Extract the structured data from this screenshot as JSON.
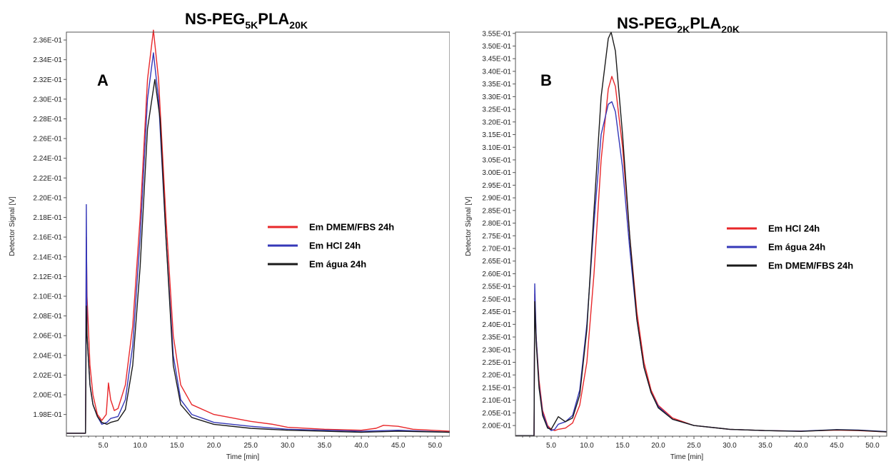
{
  "chart_data": [
    {
      "type": "line",
      "title": "NS-PEG5KPLA20K",
      "title_main": "NS-PEG",
      "title_sub1": "5K",
      "title_mid": "PLA",
      "title_sub2": "20K",
      "panel_letter": "A",
      "xlabel": "Time [min]",
      "ylabel": "Detector Signal [V]",
      "xlim": [
        0,
        52
      ],
      "ylim": [
        0.1958,
        0.2368
      ],
      "x_ticks": [
        5,
        10,
        15,
        20,
        25,
        30,
        35,
        40,
        45,
        50
      ],
      "x_tick_labels": [
        "5.0",
        "10.0",
        "15.0",
        "20.0",
        "25.0",
        "30.0",
        "35.0",
        "40.0",
        "45.0",
        "50.0"
      ],
      "y_ticks": [
        0.198,
        0.2,
        0.202,
        0.204,
        0.206,
        0.208,
        0.21,
        0.212,
        0.214,
        0.216,
        0.218,
        0.22,
        0.222,
        0.224,
        0.226,
        0.228,
        0.23,
        0.232,
        0.234,
        0.236
      ],
      "y_tick_labels": [
        "1.98E-01",
        "2.00E-01",
        "2.02E-01",
        "2.04E-01",
        "2.06E-01",
        "2.08E-01",
        "2.10E-01",
        "2.12E-01",
        "2.14E-01",
        "2.16E-01",
        "2.18E-01",
        "2.20E-01",
        "2.22E-01",
        "2.24E-01",
        "2.26E-01",
        "2.28E-01",
        "2.30E-01",
        "2.32E-01",
        "2.34E-01",
        "2.36E-01"
      ],
      "grid": false,
      "legend_position": "right",
      "series": [
        {
          "name": "Em DMEM/FBS 24h",
          "color": "#e8272a",
          "points": [
            [
              0,
              0.1961
            ],
            [
              2.6,
              0.1961
            ],
            [
              2.7,
              0.216
            ],
            [
              2.8,
              0.21
            ],
            [
              3.2,
              0.203
            ],
            [
              3.6,
              0.2
            ],
            [
              4.2,
              0.198
            ],
            [
              4.8,
              0.1974
            ],
            [
              5.4,
              0.198
            ],
            [
              5.7,
              0.2012
            ],
            [
              6.0,
              0.1995
            ],
            [
              6.5,
              0.1984
            ],
            [
              7.0,
              0.1986
            ],
            [
              8.0,
              0.201
            ],
            [
              9.0,
              0.207
            ],
            [
              10.0,
              0.218
            ],
            [
              11.0,
              0.232
            ],
            [
              11.8,
              0.237
            ],
            [
              12.5,
              0.232
            ],
            [
              13.5,
              0.218
            ],
            [
              14.5,
              0.206
            ],
            [
              15.5,
              0.201
            ],
            [
              17.0,
              0.199
            ],
            [
              20.0,
              0.198
            ],
            [
              25.0,
              0.1973
            ],
            [
              28.0,
              0.197
            ],
            [
              30.0,
              0.1967
            ],
            [
              35.0,
              0.1965
            ],
            [
              40.0,
              0.1964
            ],
            [
              42.0,
              0.1966
            ],
            [
              43.0,
              0.1969
            ],
            [
              45.0,
              0.1968
            ],
            [
              47.0,
              0.1965
            ],
            [
              52.0,
              0.1963
            ]
          ]
        },
        {
          "name": "Em HCl 24h",
          "color": "#3538b8",
          "points": [
            [
              0,
              0.1961
            ],
            [
              2.6,
              0.1961
            ],
            [
              2.7,
              0.2193
            ],
            [
              2.8,
              0.206
            ],
            [
              3.2,
              0.201
            ],
            [
              3.6,
              0.199
            ],
            [
              4.2,
              0.1978
            ],
            [
              4.8,
              0.197
            ],
            [
              5.5,
              0.1972
            ],
            [
              6.0,
              0.1976
            ],
            [
              7.0,
              0.1978
            ],
            [
              8.0,
              0.1995
            ],
            [
              9.0,
              0.205
            ],
            [
              10.0,
              0.216
            ],
            [
              11.0,
              0.23
            ],
            [
              11.8,
              0.2347
            ],
            [
              12.5,
              0.23
            ],
            [
              13.5,
              0.216
            ],
            [
              14.5,
              0.204
            ],
            [
              15.5,
              0.1995
            ],
            [
              17.0,
              0.198
            ],
            [
              20.0,
              0.1972
            ],
            [
              25.0,
              0.1968
            ],
            [
              30.0,
              0.1965
            ],
            [
              35.0,
              0.1964
            ],
            [
              40.0,
              0.1963
            ],
            [
              45.0,
              0.1964
            ],
            [
              52.0,
              0.1962
            ]
          ]
        },
        {
          "name": "Em água 24h",
          "color": "#1a1a1a",
          "points": [
            [
              0,
              0.1961
            ],
            [
              2.6,
              0.1961
            ],
            [
              2.7,
              0.209
            ],
            [
              2.8,
              0.206
            ],
            [
              3.2,
              0.201
            ],
            [
              3.6,
              0.199
            ],
            [
              4.2,
              0.1978
            ],
            [
              4.8,
              0.1972
            ],
            [
              5.5,
              0.197
            ],
            [
              6.0,
              0.1972
            ],
            [
              7.0,
              0.1974
            ],
            [
              8.0,
              0.1985
            ],
            [
              9.0,
              0.203
            ],
            [
              10.0,
              0.213
            ],
            [
              11.0,
              0.227
            ],
            [
              12.0,
              0.232
            ],
            [
              12.7,
              0.228
            ],
            [
              13.5,
              0.216
            ],
            [
              14.5,
              0.203
            ],
            [
              15.5,
              0.199
            ],
            [
              17.0,
              0.1977
            ],
            [
              20.0,
              0.197
            ],
            [
              25.0,
              0.1966
            ],
            [
              30.0,
              0.1964
            ],
            [
              35.0,
              0.1963
            ],
            [
              40.0,
              0.1962
            ],
            [
              45.0,
              0.1963
            ],
            [
              52.0,
              0.1962
            ]
          ]
        }
      ]
    },
    {
      "type": "line",
      "title": "NS-PEG2KPLA20K",
      "title_main": "NS-PEG",
      "title_sub1": "2K",
      "title_mid": "PLA",
      "title_sub2": "20K",
      "panel_letter": "B",
      "xlabel": "Time [min]",
      "ylabel": "Detector Signal [V]",
      "xlim": [
        0,
        52
      ],
      "ylim": [
        0.1958,
        0.3555
      ],
      "x_ticks": [
        5,
        10,
        15,
        20,
        25,
        30,
        35,
        40,
        45,
        50
      ],
      "x_tick_labels": [
        "5.0",
        "10.0",
        "15.0",
        "20.0",
        "25.0",
        "30.0",
        "35.0",
        "40.0",
        "45.0",
        "50.0"
      ],
      "y_ticks": [
        0.2,
        0.205,
        0.21,
        0.215,
        0.22,
        0.225,
        0.23,
        0.235,
        0.24,
        0.245,
        0.25,
        0.255,
        0.26,
        0.265,
        0.27,
        0.275,
        0.28,
        0.285,
        0.29,
        0.295,
        0.3,
        0.305,
        0.31,
        0.315,
        0.32,
        0.325,
        0.33,
        0.335,
        0.34,
        0.345,
        0.35,
        0.355
      ],
      "y_tick_labels": [
        "2.00E-01",
        "2.05E-01",
        "2.10E-01",
        "2.15E-01",
        "2.20E-01",
        "2.25E-01",
        "2.30E-01",
        "2.35E-01",
        "2.40E-01",
        "2.45E-01",
        "2.50E-01",
        "2.55E-01",
        "2.60E-01",
        "2.65E-01",
        "2.70E-01",
        "2.75E-01",
        "2.80E-01",
        "2.85E-01",
        "2.90E-01",
        "2.95E-01",
        "3.00E-01",
        "3.05E-01",
        "3.10E-01",
        "3.15E-01",
        "3.20E-01",
        "3.25E-01",
        "3.30E-01",
        "3.35E-01",
        "3.40E-01",
        "3.45E-01",
        "3.50E-01",
        "3.55E-01"
      ],
      "grid": false,
      "legend_position": "right",
      "series": [
        {
          "name": "Em HCl 24h",
          "color": "#e8272a",
          "points": [
            [
              0,
              0.196
            ],
            [
              2.6,
              0.196
            ],
            [
              2.7,
              0.252
            ],
            [
              2.9,
              0.235
            ],
            [
              3.3,
              0.218
            ],
            [
              3.8,
              0.206
            ],
            [
              4.5,
              0.2
            ],
            [
              5.0,
              0.1985
            ],
            [
              5.5,
              0.198
            ],
            [
              6.0,
              0.1985
            ],
            [
              7.0,
              0.199
            ],
            [
              8.0,
              0.201
            ],
            [
              9.0,
              0.208
            ],
            [
              10.0,
              0.225
            ],
            [
              11.0,
              0.26
            ],
            [
              12.0,
              0.305
            ],
            [
              13.0,
              0.333
            ],
            [
              13.5,
              0.338
            ],
            [
              14.0,
              0.334
            ],
            [
              15.0,
              0.31
            ],
            [
              16.0,
              0.275
            ],
            [
              17.0,
              0.245
            ],
            [
              18.0,
              0.225
            ],
            [
              19.0,
              0.214
            ],
            [
              20.0,
              0.208
            ],
            [
              22.0,
              0.203
            ],
            [
              25.0,
              0.2
            ],
            [
              30.0,
              0.1985
            ],
            [
              35.0,
              0.198
            ],
            [
              40.0,
              0.1978
            ],
            [
              45.0,
              0.1982
            ],
            [
              48.0,
              0.198
            ],
            [
              52.0,
              0.1975
            ]
          ]
        },
        {
          "name": "Em água 24h",
          "color": "#3538b8",
          "points": [
            [
              0,
              0.196
            ],
            [
              2.6,
              0.196
            ],
            [
              2.7,
              0.256
            ],
            [
              2.9,
              0.235
            ],
            [
              3.3,
              0.216
            ],
            [
              3.8,
              0.205
            ],
            [
              4.5,
              0.1995
            ],
            [
              5.0,
              0.198
            ],
            [
              5.5,
              0.1985
            ],
            [
              6.0,
              0.2005
            ],
            [
              7.0,
              0.2015
            ],
            [
              8.0,
              0.204
            ],
            [
              9.0,
              0.214
            ],
            [
              10.0,
              0.24
            ],
            [
              11.0,
              0.28
            ],
            [
              12.0,
              0.315
            ],
            [
              13.0,
              0.327
            ],
            [
              13.5,
              0.328
            ],
            [
              14.0,
              0.324
            ],
            [
              15.0,
              0.302
            ],
            [
              16.0,
              0.27
            ],
            [
              17.0,
              0.242
            ],
            [
              18.0,
              0.223
            ],
            [
              19.0,
              0.213
            ],
            [
              20.0,
              0.2075
            ],
            [
              22.0,
              0.2025
            ],
            [
              25.0,
              0.2
            ],
            [
              30.0,
              0.1985
            ],
            [
              35.0,
              0.198
            ],
            [
              40.0,
              0.1978
            ],
            [
              45.0,
              0.1984
            ],
            [
              48.0,
              0.1982
            ],
            [
              52.0,
              0.1976
            ]
          ]
        },
        {
          "name": "Em DMEM/FBS 24h",
          "color": "#1a1a1a",
          "points": [
            [
              0,
              0.196
            ],
            [
              2.6,
              0.196
            ],
            [
              2.7,
              0.249
            ],
            [
              2.9,
              0.233
            ],
            [
              3.3,
              0.215
            ],
            [
              3.8,
              0.204
            ],
            [
              4.5,
              0.199
            ],
            [
              5.0,
              0.1985
            ],
            [
              5.5,
              0.201
            ],
            [
              6.0,
              0.2035
            ],
            [
              6.5,
              0.2025
            ],
            [
              7.0,
              0.2015
            ],
            [
              8.0,
              0.203
            ],
            [
              9.0,
              0.212
            ],
            [
              10.0,
              0.238
            ],
            [
              11.0,
              0.285
            ],
            [
              12.0,
              0.33
            ],
            [
              13.0,
              0.353
            ],
            [
              13.4,
              0.3555
            ],
            [
              14.0,
              0.348
            ],
            [
              15.0,
              0.315
            ],
            [
              16.0,
              0.275
            ],
            [
              17.0,
              0.242
            ],
            [
              18.0,
              0.223
            ],
            [
              19.0,
              0.213
            ],
            [
              20.0,
              0.207
            ],
            [
              22.0,
              0.2025
            ],
            [
              25.0,
              0.2
            ],
            [
              30.0,
              0.1985
            ],
            [
              35.0,
              0.198
            ],
            [
              40.0,
              0.1977
            ],
            [
              45.0,
              0.1983
            ],
            [
              48.0,
              0.1981
            ],
            [
              52.0,
              0.1975
            ]
          ]
        }
      ]
    }
  ]
}
